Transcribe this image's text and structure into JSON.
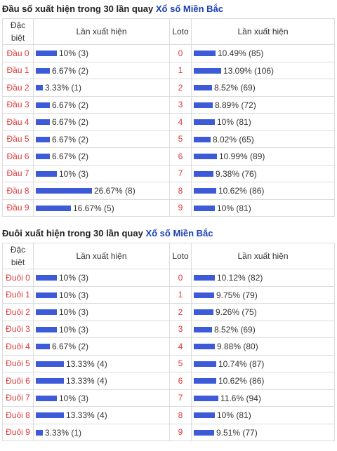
{
  "section1": {
    "title_prefix": "Đầu số xuất hiện trong 30 lần quay",
    "title_link": "Xổ số Miền Bắc",
    "headers": {
      "special": "Đặc biệt",
      "count": "Lần xuất hiện",
      "loto": "Loto",
      "loto_count": "Lần xuất hiện"
    },
    "rows": [
      {
        "label": "Đầu 0",
        "pct": 10,
        "text": "10% (3)",
        "loto": "0",
        "loto_pct": 10.49,
        "loto_text": "10.49% (85)"
      },
      {
        "label": "Đầu 1",
        "pct": 6.67,
        "text": "6.67% (2)",
        "loto": "1",
        "loto_pct": 13.09,
        "loto_text": "13.09% (106)"
      },
      {
        "label": "Đầu 2",
        "pct": 3.33,
        "text": "3.33% (1)",
        "loto": "2",
        "loto_pct": 8.52,
        "loto_text": "8.52% (69)"
      },
      {
        "label": "Đầu 3",
        "pct": 6.67,
        "text": "6.67% (2)",
        "loto": "3",
        "loto_pct": 8.89,
        "loto_text": "8.89% (72)"
      },
      {
        "label": "Đầu 4",
        "pct": 6.67,
        "text": "6.67% (2)",
        "loto": "4",
        "loto_pct": 10,
        "loto_text": "10% (81)"
      },
      {
        "label": "Đầu 5",
        "pct": 6.67,
        "text": "6.67% (2)",
        "loto": "5",
        "loto_pct": 8.02,
        "loto_text": "8.02% (65)"
      },
      {
        "label": "Đầu 6",
        "pct": 6.67,
        "text": "6.67% (2)",
        "loto": "6",
        "loto_pct": 10.99,
        "loto_text": "10.99% (89)"
      },
      {
        "label": "Đầu 7",
        "pct": 10,
        "text": "10% (3)",
        "loto": "7",
        "loto_pct": 9.38,
        "loto_text": "9.38% (76)"
      },
      {
        "label": "Đầu 8",
        "pct": 26.67,
        "text": "26.67% (8)",
        "loto": "8",
        "loto_pct": 10.62,
        "loto_text": "10.62% (86)"
      },
      {
        "label": "Đầu 9",
        "pct": 16.67,
        "text": "16.67% (5)",
        "loto": "9",
        "loto_pct": 10,
        "loto_text": "10% (81)"
      }
    ]
  },
  "section2": {
    "title_prefix": "Đuôi xuất hiện trong 30 lần quay",
    "title_link": "Xổ số Miền Bắc",
    "headers": {
      "special": "Đặc biệt",
      "count": "Lần xuất hiện",
      "loto": "Loto",
      "loto_count": "Lần xuất hiện"
    },
    "rows": [
      {
        "label": "Đuôi 0",
        "pct": 10,
        "text": "10% (3)",
        "loto": "0",
        "loto_pct": 10.12,
        "loto_text": "10.12% (82)"
      },
      {
        "label": "Đuôi 1",
        "pct": 10,
        "text": "10% (3)",
        "loto": "1",
        "loto_pct": 9.75,
        "loto_text": "9.75% (79)"
      },
      {
        "label": "Đuôi 2",
        "pct": 10,
        "text": "10% (3)",
        "loto": "2",
        "loto_pct": 9.26,
        "loto_text": "9.26% (75)"
      },
      {
        "label": "Đuôi 3",
        "pct": 10,
        "text": "10% (3)",
        "loto": "3",
        "loto_pct": 8.52,
        "loto_text": "8.52% (69)"
      },
      {
        "label": "Đuôi 4",
        "pct": 6.67,
        "text": "6.67% (2)",
        "loto": "4",
        "loto_pct": 9.88,
        "loto_text": "9.88% (80)"
      },
      {
        "label": "Đuôi 5",
        "pct": 13.33,
        "text": "13.33% (4)",
        "loto": "5",
        "loto_pct": 10.74,
        "loto_text": "10.74% (87)"
      },
      {
        "label": "Đuôi 6",
        "pct": 13.33,
        "text": "13.33% (4)",
        "loto": "6",
        "loto_pct": 10.62,
        "loto_text": "10.62% (86)"
      },
      {
        "label": "Đuôi 7",
        "pct": 10,
        "text": "10% (3)",
        "loto": "7",
        "loto_pct": 11.6,
        "loto_text": "11.6% (94)"
      },
      {
        "label": "Đuôi 8",
        "pct": 13.33,
        "text": "13.33% (4)",
        "loto": "8",
        "loto_pct": 10,
        "loto_text": "10% (81)"
      },
      {
        "label": "Đuôi 9",
        "pct": 3.33,
        "text": "3.33% (1)",
        "loto": "9",
        "loto_pct": 9.51,
        "loto_text": "9.51% (77)"
      }
    ]
  },
  "colors": {
    "bar": "#3d5ad8",
    "label_red": "#e03a3a",
    "link_blue": "#1a3fb5"
  }
}
